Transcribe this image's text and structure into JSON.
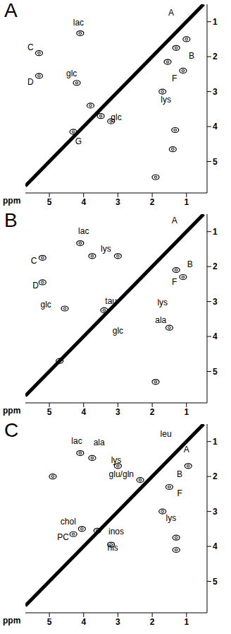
{
  "chart_data": [
    {
      "type": "scatter",
      "title": "A",
      "xlabel": "ppm",
      "color": "#000000",
      "xlim": [
        5.7,
        0.4
      ],
      "ylim": [
        5.9,
        0.5
      ],
      "xticks": [
        5,
        4,
        3,
        2,
        1
      ],
      "yticks": [
        1,
        2,
        3,
        4,
        5
      ],
      "diagonal": {
        "x": [
          5.7,
          0.5
        ],
        "y": [
          5.7,
          0.5
        ]
      },
      "peaks": {
        "x": [
          4.1,
          5.3,
          5.3,
          4.2,
          1.0,
          1.3,
          1.55,
          1.1,
          1.7,
          3.2,
          1.4,
          1.9,
          4.3,
          3.5,
          3.8,
          1.33
        ],
        "y": [
          1.33,
          1.9,
          2.55,
          2.75,
          1.5,
          1.75,
          2.15,
          2.4,
          3.0,
          3.85,
          4.65,
          5.45,
          4.15,
          3.7,
          3.4,
          4.1
        ]
      },
      "annotations": [
        {
          "text": "lac",
          "x": 4.15,
          "y": 1.05
        },
        {
          "text": "A",
          "x": 1.45,
          "y": 0.75
        },
        {
          "text": "C",
          "x": 5.55,
          "y": 1.75
        },
        {
          "text": "D",
          "x": 5.55,
          "y": 2.75
        },
        {
          "text": "glc",
          "x": 4.35,
          "y": 2.5
        },
        {
          "text": "B",
          "x": 0.85,
          "y": 2.0
        },
        {
          "text": "F",
          "x": 1.35,
          "y": 2.65
        },
        {
          "text": "lys",
          "x": 1.6,
          "y": 3.25
        },
        {
          "text": "glc",
          "x": 3.05,
          "y": 3.75
        },
        {
          "text": "G",
          "x": 4.15,
          "y": 4.45
        }
      ]
    },
    {
      "type": "scatter",
      "title": "B",
      "xlabel": "ppm",
      "color": "#000000",
      "xlim": [
        5.7,
        0.4
      ],
      "ylim": [
        5.9,
        0.5
      ],
      "xticks": [
        5,
        4,
        3,
        2,
        1
      ],
      "yticks": [
        1,
        2,
        3,
        4,
        5
      ],
      "diagonal": {
        "x": [
          5.7,
          0.5
        ],
        "y": [
          5.7,
          0.5
        ]
      },
      "peaks": {
        "x": [
          4.1,
          5.2,
          5.2,
          4.55,
          3.75,
          3.0,
          1.5,
          1.3,
          1.1,
          3.4,
          1.9,
          4.7
        ],
        "y": [
          1.33,
          1.75,
          2.45,
          3.2,
          1.7,
          1.7,
          3.75,
          2.1,
          2.3,
          3.25,
          5.3,
          4.7
        ]
      },
      "annotations": [
        {
          "text": "lac",
          "x": 4.0,
          "y": 1.0
        },
        {
          "text": "A",
          "x": 1.35,
          "y": 0.7
        },
        {
          "text": "C",
          "x": 5.45,
          "y": 1.85
        },
        {
          "text": "lys",
          "x": 3.35,
          "y": 1.5
        },
        {
          "text": "D",
          "x": 5.4,
          "y": 2.55
        },
        {
          "text": "glc",
          "x": 5.1,
          "y": 3.1
        },
        {
          "text": "tau",
          "x": 3.2,
          "y": 3.0
        },
        {
          "text": "B",
          "x": 0.9,
          "y": 1.95
        },
        {
          "text": "F",
          "x": 1.35,
          "y": 2.45
        },
        {
          "text": "lys",
          "x": 1.7,
          "y": 3.05
        },
        {
          "text": "ala",
          "x": 1.75,
          "y": 3.55
        },
        {
          "text": "glc",
          "x": 3.0,
          "y": 3.85
        }
      ]
    },
    {
      "type": "scatter",
      "title": "C",
      "xlabel": "ppm",
      "color": "#000000",
      "xlim": [
        5.7,
        0.4
      ],
      "ylim": [
        5.9,
        0.5
      ],
      "xticks": [
        5,
        4,
        3,
        2,
        1
      ],
      "yticks": [
        1,
        2,
        3,
        4,
        5
      ],
      "diagonal": {
        "x": [
          5.7,
          0.5
        ],
        "y": [
          5.7,
          0.5
        ]
      },
      "peaks": {
        "x": [
          4.1,
          3.75,
          0.95,
          3.0,
          2.35,
          1.5,
          1.7,
          4.05,
          4.3,
          3.6,
          3.2,
          1.3,
          1.3,
          4.9
        ],
        "y": [
          1.33,
          1.47,
          1.7,
          1.7,
          2.1,
          2.3,
          3.0,
          3.5,
          3.65,
          3.55,
          3.95,
          4.1,
          3.75,
          2.0
        ]
      },
      "annotations": [
        {
          "text": "lac",
          "x": 4.2,
          "y": 1.0
        },
        {
          "text": "ala",
          "x": 3.55,
          "y": 1.05
        },
        {
          "text": "leu",
          "x": 1.6,
          "y": 0.8
        },
        {
          "text": "lys",
          "x": 3.05,
          "y": 1.55
        },
        {
          "text": "A",
          "x": 1.0,
          "y": 1.25
        },
        {
          "text": "glu/gln",
          "x": 2.9,
          "y": 1.95
        },
        {
          "text": "B",
          "x": 1.2,
          "y": 1.95
        },
        {
          "text": "F",
          "x": 1.2,
          "y": 2.5
        },
        {
          "text": "lys",
          "x": 1.45,
          "y": 3.2
        },
        {
          "text": "chol",
          "x": 4.45,
          "y": 3.3
        },
        {
          "text": "PC",
          "x": 4.6,
          "y": 3.75
        },
        {
          "text": "inos",
          "x": 3.05,
          "y": 3.6
        },
        {
          "text": "his",
          "x": 3.15,
          "y": 4.05
        }
      ]
    }
  ]
}
